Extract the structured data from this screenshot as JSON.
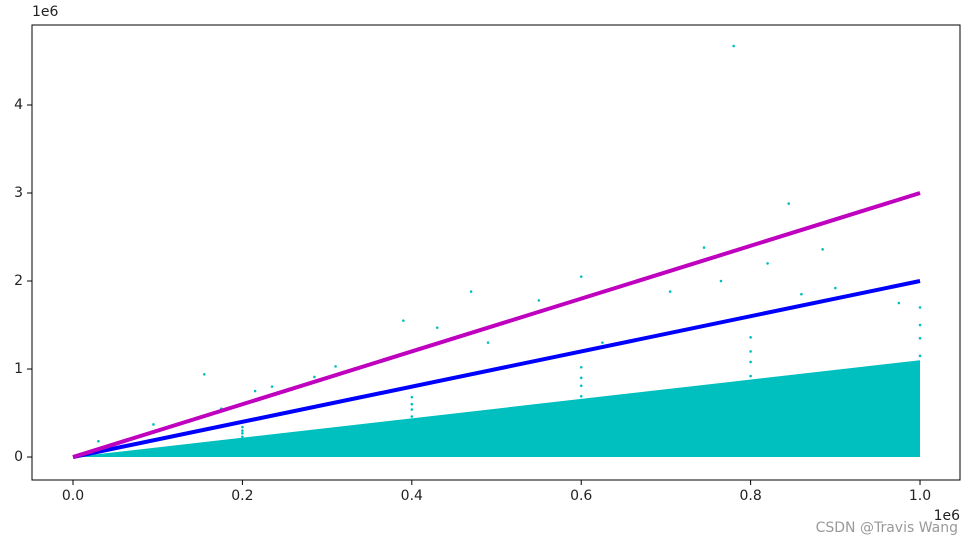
{
  "chart_data": {
    "type": "scatter",
    "xlim": [
      -48400,
      1047200
    ],
    "ylim": [
      -261000,
      4909000
    ],
    "xticks": [
      {
        "value": 0,
        "label": "0.0"
      },
      {
        "value": 200000,
        "label": "0.2"
      },
      {
        "value": 400000,
        "label": "0.4"
      },
      {
        "value": 600000,
        "label": "0.6"
      },
      {
        "value": 800000,
        "label": "0.8"
      },
      {
        "value": 1000000,
        "label": "1.0"
      }
    ],
    "yticks": [
      {
        "value": 0,
        "label": "0"
      },
      {
        "value": 1000000,
        "label": "1"
      },
      {
        "value": 2000000,
        "label": "2"
      },
      {
        "value": 3000000,
        "label": "3"
      },
      {
        "value": 4000000,
        "label": "4"
      }
    ],
    "x_offset_label": "1e6",
    "y_offset_label": "1e6",
    "grid": false,
    "watermark": "CSDN @Travis Wang",
    "series": [
      {
        "kind": "area",
        "color": "#00bfbf",
        "x": [
          0,
          1000000,
          1000000
        ],
        "values": [
          0,
          1100000,
          0
        ]
      },
      {
        "kind": "points",
        "color": "#00bfbf",
        "x": [
          30000,
          95000,
          155000,
          175000,
          215000,
          235000,
          285000,
          310000,
          390000,
          430000,
          470000,
          490000,
          550000,
          600000,
          625000,
          705000,
          745000,
          765000,
          780000,
          820000,
          845000,
          860000,
          885000,
          900000,
          975000,
          200000,
          400000,
          600000,
          800000,
          1000000,
          200000,
          400000,
          600000,
          800000,
          1000000,
          200000,
          400000,
          600000,
          800000,
          1000000,
          200000,
          400000,
          600000,
          800000,
          1000000
        ],
        "values": [
          180000,
          370000,
          940000,
          550000,
          750000,
          800000,
          910000,
          1030000,
          1550000,
          1470000,
          1880000,
          1300000,
          1780000,
          2050000,
          1300000,
          1880000,
          2380000,
          2000000,
          4670000,
          2200000,
          2880000,
          1850000,
          2360000,
          1920000,
          1750000,
          340000,
          680000,
          1020000,
          1360000,
          1700000,
          300000,
          600000,
          900000,
          1200000,
          1500000,
          270000,
          540000,
          810000,
          1080000,
          1350000,
          230000,
          460000,
          690000,
          920000,
          1150000
        ]
      },
      {
        "kind": "line",
        "color": "#0000ff",
        "x": [
          0,
          1000000
        ],
        "values": [
          0,
          2000000
        ]
      },
      {
        "kind": "line",
        "color": "#bf00bf",
        "x": [
          0,
          1000000
        ],
        "values": [
          0,
          3000000
        ]
      }
    ]
  }
}
